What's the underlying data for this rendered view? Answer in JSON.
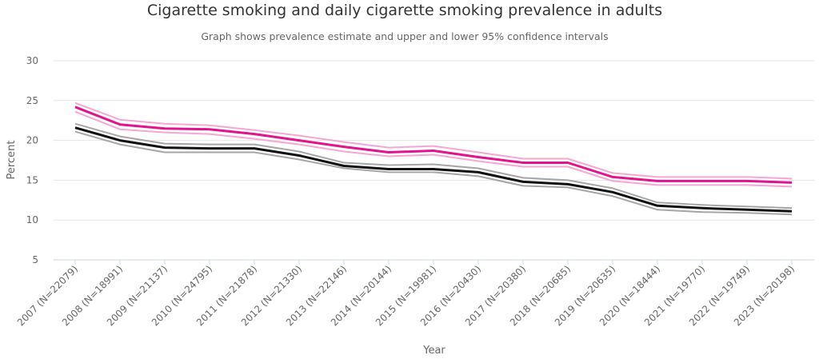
{
  "title": "Cigarette smoking and daily cigarette smoking prevalence in adults",
  "subtitle": "Graph shows prevalence estimate and upper and lower 95% confidence intervals",
  "chart_data": {
    "type": "line",
    "title": "Cigarette smoking and daily cigarette smoking prevalence in adults",
    "subtitle": "Graph shows prevalence estimate and upper and lower 95% confidence intervals",
    "xlabel": "Year",
    "ylabel": "Percent",
    "ylim": [
      5,
      30
    ],
    "yticks": [
      "5",
      "10",
      "15",
      "20",
      "25",
      "30"
    ],
    "grid": true,
    "legend": "none",
    "categories": [
      "2007 (N=22079)",
      "2008 (N=18991)",
      "2009 (N=21137)",
      "2010 (N=24795)",
      "2011 (N=21878)",
      "2012 (N=21330)",
      "2013 (N=22146)",
      "2014 (N=20144)",
      "2015 (N=19981)",
      "2016 (N=20430)",
      "2017 (N=20380)",
      "2018 (N=20685)",
      "2019 (N=20635)",
      "2020 (N=18444)",
      "2021 (N=19770)",
      "2022 (N=19749)",
      "2023 (N=20198)"
    ],
    "series": [
      {
        "role": "smoking-upper",
        "color": "#f4a7d3",
        "values": [
          24.7,
          22.6,
          22.1,
          21.9,
          21.3,
          20.6,
          19.8,
          19.1,
          19.3,
          18.5,
          17.7,
          17.7,
          15.9,
          15.4,
          15.4,
          15.4,
          15.2
        ]
      },
      {
        "role": "smoking-estimate",
        "color": "#e0148e",
        "values": [
          24.2,
          22.0,
          21.5,
          21.4,
          20.8,
          20.0,
          19.2,
          18.5,
          18.7,
          17.9,
          17.2,
          17.2,
          15.4,
          14.9,
          14.9,
          14.9,
          14.7
        ]
      },
      {
        "role": "smoking-lower",
        "color": "#f4a7d3",
        "values": [
          23.6,
          21.4,
          21.0,
          20.8,
          20.2,
          19.5,
          18.6,
          18.0,
          18.2,
          17.4,
          16.7,
          16.7,
          14.9,
          14.4,
          14.4,
          14.4,
          14.2
        ]
      },
      {
        "role": "daily-upper",
        "color": "#a6a6a6",
        "values": [
          22.1,
          20.5,
          19.6,
          19.5,
          19.5,
          18.6,
          17.2,
          16.9,
          17.0,
          16.5,
          15.3,
          15.0,
          14.0,
          12.2,
          11.9,
          11.7,
          11.5
        ]
      },
      {
        "role": "daily-estimate",
        "color": "#111111",
        "values": [
          21.6,
          20.0,
          19.1,
          19.0,
          19.0,
          18.1,
          16.8,
          16.4,
          16.4,
          16.0,
          14.8,
          14.5,
          13.5,
          11.8,
          11.5,
          11.3,
          11.1
        ]
      },
      {
        "role": "daily-lower",
        "color": "#a6a6a6",
        "values": [
          21.1,
          19.5,
          18.5,
          18.5,
          18.5,
          17.6,
          16.5,
          16.0,
          16.0,
          15.5,
          14.3,
          14.1,
          13.0,
          11.3,
          11.0,
          10.9,
          10.7
        ]
      }
    ]
  }
}
